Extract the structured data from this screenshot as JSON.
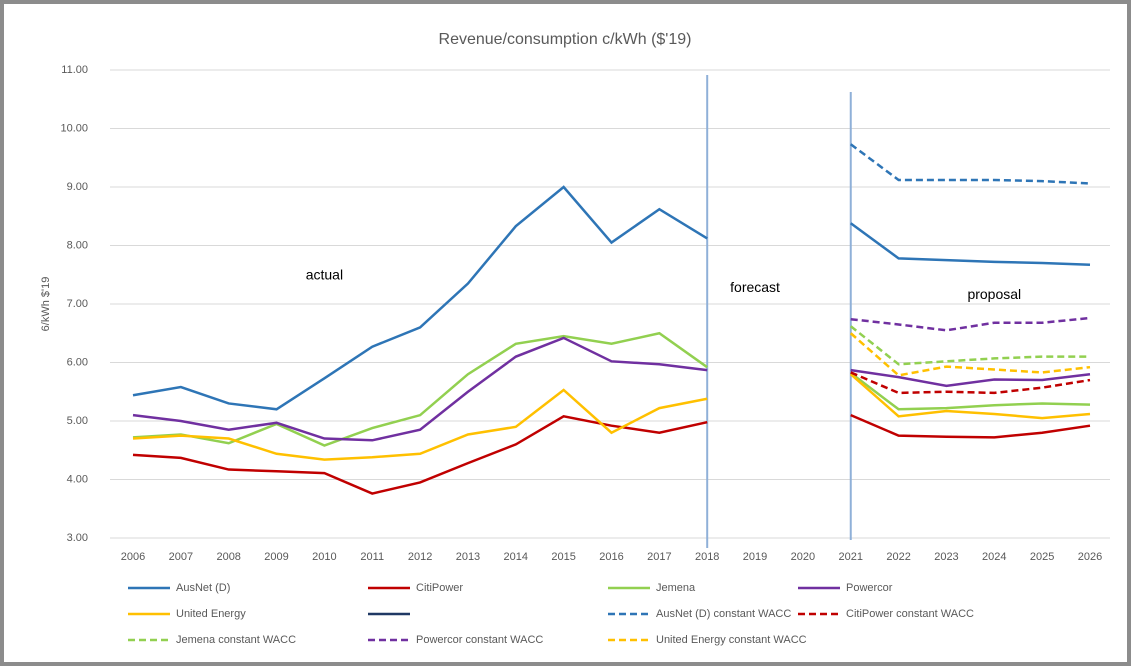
{
  "chart_data": {
    "type": "line",
    "title": "Revenue/consumption c/kWh ($'19)",
    "y_label": "6/kWh $'19",
    "categories": [
      "2006",
      "2007",
      "2008",
      "2009",
      "2010",
      "2011",
      "2012",
      "2013",
      "2014",
      "2015",
      "2016",
      "2017",
      "2018",
      "2019",
      "2020",
      "2021",
      "2022",
      "2023",
      "2024",
      "2025",
      "2026"
    ],
    "ylim": [
      3,
      11
    ],
    "yticks": [
      {
        "value": 3,
        "label": "3.00"
      },
      {
        "value": 4,
        "label": "4.00"
      },
      {
        "value": 5,
        "label": "5.00"
      },
      {
        "value": 6,
        "label": "6.00"
      },
      {
        "value": 7,
        "label": "7.00"
      },
      {
        "value": 8,
        "label": "8.00"
      },
      {
        "value": 9,
        "label": "9.00"
      },
      {
        "value": 10,
        "label": "10.00"
      },
      {
        "value": 11,
        "label": "11.00"
      }
    ],
    "grid": true,
    "markers": [
      "2018",
      "2021"
    ],
    "annotations": [
      {
        "text": "actual",
        "x": "2010",
        "y": 7.48
      },
      {
        "text": "forecast",
        "x": "2019",
        "y": 7.27
      },
      {
        "text": "proposal",
        "x": "2024",
        "y": 7.15
      }
    ],
    "series": [
      {
        "name": "AusNet (D)",
        "color": "#2e75b6",
        "dash": false,
        "values": [
          5.44,
          5.58,
          5.3,
          5.2,
          5.73,
          6.27,
          6.6,
          7.35,
          8.33,
          9.0,
          8.05,
          8.62,
          8.12,
          null,
          null,
          8.38,
          7.78,
          7.75,
          7.72,
          7.7,
          7.67
        ]
      },
      {
        "name": "CitiPower",
        "color": "#c00000",
        "dash": false,
        "values": [
          4.42,
          4.37,
          4.17,
          4.14,
          4.11,
          3.76,
          3.95,
          4.28,
          4.6,
          5.08,
          4.92,
          4.8,
          4.98,
          null,
          null,
          5.1,
          4.75,
          4.73,
          4.72,
          4.8,
          4.92
        ]
      },
      {
        "name": "Jemena",
        "color": "#92d050",
        "dash": false,
        "values": [
          4.72,
          4.77,
          4.62,
          4.95,
          4.58,
          4.88,
          5.1,
          5.8,
          6.32,
          6.45,
          6.32,
          6.5,
          5.92,
          null,
          null,
          5.82,
          5.2,
          5.22,
          5.27,
          5.3,
          5.28
        ]
      },
      {
        "name": "Powercor",
        "color": "#7030a0",
        "dash": false,
        "values": [
          5.1,
          5.0,
          4.85,
          4.97,
          4.7,
          4.67,
          4.85,
          5.5,
          6.1,
          6.42,
          6.02,
          5.97,
          5.87,
          null,
          null,
          5.87,
          5.75,
          5.6,
          5.71,
          5.7,
          5.8
        ]
      },
      {
        "name": "United Energy",
        "color": "#ffc000",
        "dash": false,
        "values": [
          4.7,
          4.75,
          4.7,
          4.44,
          4.34,
          4.38,
          4.44,
          4.77,
          4.9,
          5.53,
          4.8,
          5.22,
          5.38,
          null,
          null,
          5.8,
          5.08,
          5.17,
          5.12,
          5.05,
          5.12
        ]
      },
      {
        "name": null,
        "color": "#1f3864",
        "dash": false,
        "values": [
          null,
          null,
          null,
          null,
          null,
          null,
          null,
          null,
          null,
          null,
          null,
          null,
          null,
          null,
          null,
          null,
          null,
          null,
          null,
          null,
          null
        ]
      },
      {
        "name": "AusNet (D) constant WACC",
        "color": "#2e75b6",
        "dash": true,
        "values": [
          null,
          null,
          null,
          null,
          null,
          null,
          null,
          null,
          null,
          null,
          null,
          null,
          null,
          null,
          null,
          9.73,
          9.12,
          9.12,
          9.12,
          9.1,
          9.06
        ]
      },
      {
        "name": "CitiPower constant WACC",
        "color": "#c00000",
        "dash": true,
        "values": [
          null,
          null,
          null,
          null,
          null,
          null,
          null,
          null,
          null,
          null,
          null,
          null,
          null,
          null,
          null,
          5.83,
          5.48,
          5.5,
          5.48,
          5.57,
          5.7
        ]
      },
      {
        "name": "Jemena constant WACC",
        "color": "#92d050",
        "dash": true,
        "values": [
          null,
          null,
          null,
          null,
          null,
          null,
          null,
          null,
          null,
          null,
          null,
          null,
          null,
          null,
          null,
          6.62,
          5.97,
          6.02,
          6.07,
          6.1,
          6.1
        ]
      },
      {
        "name": "Powercor constant WACC",
        "color": "#7030a0",
        "dash": true,
        "values": [
          null,
          null,
          null,
          null,
          null,
          null,
          null,
          null,
          null,
          null,
          null,
          null,
          null,
          null,
          null,
          6.74,
          6.65,
          6.55,
          6.68,
          6.68,
          6.76
        ]
      },
      {
        "name": "United Energy constant WACC",
        "color": "#ffc000",
        "dash": true,
        "values": [
          null,
          null,
          null,
          null,
          null,
          null,
          null,
          null,
          null,
          null,
          null,
          null,
          null,
          null,
          null,
          6.5,
          5.78,
          5.93,
          5.88,
          5.83,
          5.92
        ]
      }
    ]
  }
}
